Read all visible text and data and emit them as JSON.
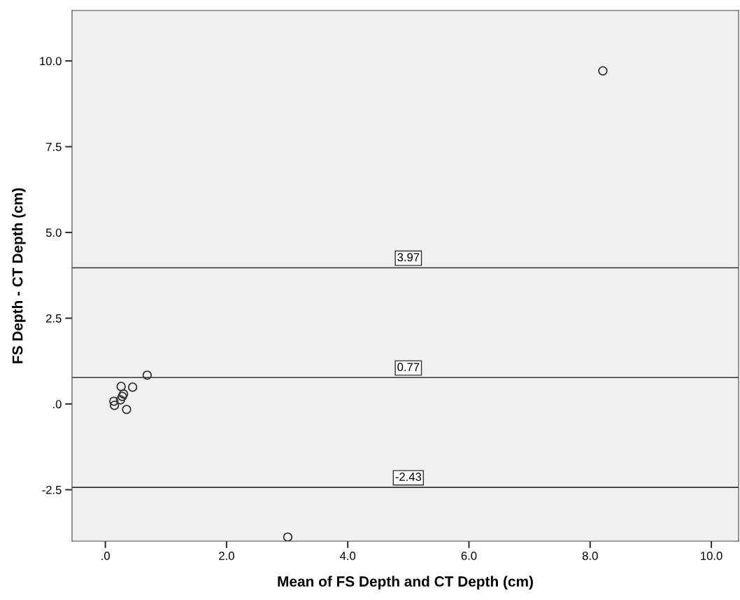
{
  "chart_data": {
    "type": "scatter",
    "xlabel": "Mean of FS Depth and CT Depth (cm)",
    "ylabel": "FS Depth - CT Depth (cm)",
    "x": [
      0.69,
      0.26,
      0.45,
      0.3,
      0.28,
      0.25,
      0.14,
      0.15,
      0.35,
      8.21,
      3.01
    ],
    "values": [
      0.84,
      0.51,
      0.49,
      0.29,
      0.22,
      0.12,
      0.08,
      -0.04,
      -0.16,
      9.71,
      -3.88
    ],
    "color": "#333333",
    "marker": "circle",
    "grid": false,
    "xlim": [
      -0.55,
      10.45
    ],
    "ylim": [
      -4.0,
      11.47
    ],
    "xticks": [
      {
        "value": 0,
        "label": ".0"
      },
      {
        "value": 2,
        "label": "2.0"
      },
      {
        "value": 4,
        "label": "4.0"
      },
      {
        "value": 6,
        "label": "6.0"
      },
      {
        "value": 8,
        "label": "8.0"
      },
      {
        "value": 10,
        "label": "10.0"
      }
    ],
    "yticks": [
      {
        "value": -2.5,
        "label": "-2.5"
      },
      {
        "value": 0,
        "label": ".0"
      },
      {
        "value": 2.5,
        "label": "2.5"
      },
      {
        "value": 5,
        "label": "5.0"
      },
      {
        "value": 7.5,
        "label": "7.5"
      },
      {
        "value": 10,
        "label": "10.0"
      }
    ],
    "ref_lines": [
      {
        "axis": "y",
        "value": 3.97,
        "label": "3.97",
        "color": "#333333"
      },
      {
        "axis": "y",
        "value": 0.77,
        "label": "0.77",
        "color": "#333333"
      },
      {
        "axis": "y",
        "value": -2.43,
        "label": "-2.43",
        "color": "#333333"
      }
    ]
  }
}
